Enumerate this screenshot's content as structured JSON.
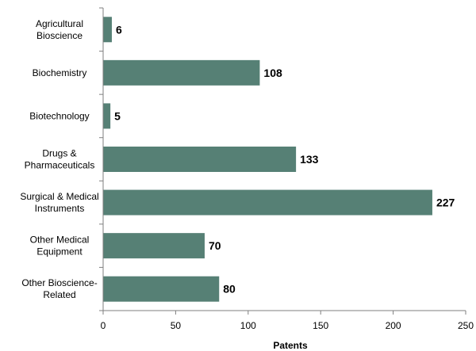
{
  "chart_data": {
    "type": "bar",
    "orientation": "horizontal",
    "categories": [
      [
        "Agricultural",
        "Bioscience"
      ],
      [
        "Biochemistry"
      ],
      [
        "Biotechnology"
      ],
      [
        "Drugs &",
        "Pharmaceuticals"
      ],
      [
        "Surgical & Medical",
        "Instruments"
      ],
      [
        "Other Medical",
        "Equipment"
      ],
      [
        "Other Bioscience-",
        "Related"
      ]
    ],
    "values": [
      6,
      108,
      5,
      133,
      227,
      70,
      80
    ],
    "xlabel": "Patents",
    "ylabel": "",
    "xlim": [
      0,
      250
    ],
    "xticks": [
      0,
      50,
      100,
      150,
      200,
      250
    ],
    "grid": false,
    "bar_color": "#568075",
    "data_labels": true
  }
}
